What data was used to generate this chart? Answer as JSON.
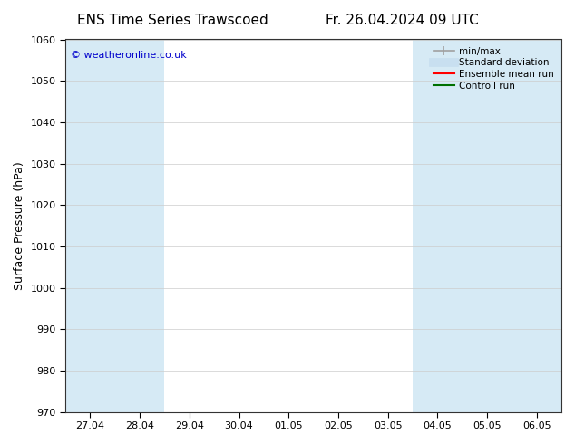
{
  "title_left": "ENS Time Series Trawscoed",
  "title_right": "Fr. 26.04.2024 09 UTC",
  "ylabel": "Surface Pressure (hPa)",
  "ylim": [
    970,
    1060
  ],
  "yticks": [
    970,
    980,
    990,
    1000,
    1010,
    1020,
    1030,
    1040,
    1050,
    1060
  ],
  "xtick_labels": [
    "27.04",
    "28.04",
    "29.04",
    "30.04",
    "01.05",
    "02.05",
    "03.05",
    "04.05",
    "05.05",
    "06.05"
  ],
  "watermark": "© weatheronline.co.uk",
  "watermark_color": "#0000cc",
  "bg_color": "#ffffff",
  "plot_bg_color": "#ffffff",
  "shaded_band_color": "#d6eaf5",
  "shaded_tick_indices": [
    0,
    1,
    7,
    8,
    9
  ],
  "legend_labels": [
    "min/max",
    "Standard deviation",
    "Ensemble mean run",
    "Controll run"
  ],
  "legend_colors": [
    "#a0a0a0",
    "#c8dff0",
    "#ff0000",
    "#007000"
  ],
  "title_fontsize": 11,
  "ylabel_fontsize": 9,
  "tick_fontsize": 8,
  "legend_fontsize": 7.5
}
